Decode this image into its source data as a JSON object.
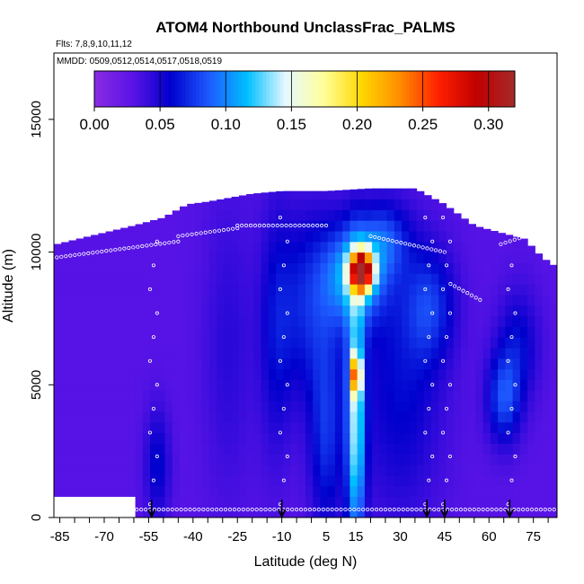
{
  "chart_data": {
    "type": "heatmap",
    "title": "ATOM4 Northbound UnclassFrac_PALMS",
    "flights_note": "Flts: 7,8,9,10,11,12",
    "dates_note": "MMDD: 0509,0512,0514,0517,0518,0519",
    "xlabel": "Latitude (deg N)",
    "ylabel": "Altitude (m)",
    "xlim": [
      -87,
      83
    ],
    "ylim": [
      0,
      17500
    ],
    "x_ticks": [
      -85,
      -70,
      -55,
      -40,
      -25,
      -10,
      5,
      15,
      30,
      45,
      60,
      75
    ],
    "x_tick_labels": [
      "-85",
      "-70",
      "-55",
      "-40",
      "-25",
      "-10",
      "5",
      "15",
      "30",
      "45",
      "60",
      "75"
    ],
    "y_ticks": [
      0,
      5000,
      10000,
      15000
    ],
    "y_tick_labels": [
      "0",
      "5000",
      "10000",
      "15000"
    ],
    "colorbar": {
      "min": 0,
      "max": 0.32,
      "ticks": [
        0.0,
        0.05,
        0.1,
        0.15,
        0.2,
        0.25,
        0.3
      ],
      "tick_labels": [
        "0.00",
        "0.05",
        "0.10",
        "0.15",
        "0.20",
        "0.25",
        "0.30"
      ],
      "colors": [
        "#8a2be2",
        "#5a14e6",
        "#0000cd",
        "#1e5aff",
        "#00bfff",
        "#e6f8ff",
        "#ffff99",
        "#ffd700",
        "#ff8c00",
        "#ff2000",
        "#c00000",
        "#a52a2a"
      ]
    },
    "background_fraction": 0.03,
    "envelope": [
      {
        "lat": -86,
        "top": 10300
      },
      {
        "lat": -75,
        "top": 10600
      },
      {
        "lat": -60,
        "top": 11000
      },
      {
        "lat": -50,
        "top": 11300
      },
      {
        "lat": -42,
        "top": 11800
      },
      {
        "lat": -35,
        "top": 11900
      },
      {
        "lat": -20,
        "top": 12200
      },
      {
        "lat": -10,
        "top": 12300
      },
      {
        "lat": 5,
        "top": 12300
      },
      {
        "lat": 20,
        "top": 12400
      },
      {
        "lat": 35,
        "top": 12400
      },
      {
        "lat": 45,
        "top": 11800
      },
      {
        "lat": 55,
        "top": 11000
      },
      {
        "lat": 65,
        "top": 10700
      },
      {
        "lat": 72,
        "top": 10500
      },
      {
        "lat": 78,
        "top": 9800
      },
      {
        "lat": 82,
        "top": 9500
      }
    ],
    "bottom_gap": {
      "from_lat": -86,
      "to_lat": -60,
      "bottom": 1000
    },
    "features": [
      {
        "lat": -28,
        "alt": 6500,
        "lat_sigma": 6,
        "alt_sigma": 4000,
        "value": 0.045
      },
      {
        "lat": -12,
        "alt": 7000,
        "lat_sigma": 4,
        "alt_sigma": 3500,
        "value": 0.055
      },
      {
        "lat": -52,
        "alt": 2000,
        "lat_sigma": 3,
        "alt_sigma": 1500,
        "value": 0.06
      },
      {
        "lat": 0,
        "alt": 8000,
        "lat_sigma": 8,
        "alt_sigma": 2500,
        "value": 0.07
      },
      {
        "lat": 5,
        "alt": 3000,
        "lat_sigma": 4,
        "alt_sigma": 2500,
        "value": 0.07
      },
      {
        "lat": 15,
        "alt": 3500,
        "lat_sigma": 2.2,
        "alt_sigma": 3500,
        "value": 0.13
      },
      {
        "lat": 15,
        "alt": 9200,
        "lat_sigma": 7,
        "alt_sigma": 1300,
        "value": 0.11
      },
      {
        "lat": 17,
        "alt": 9300,
        "lat_sigma": 2.5,
        "alt_sigma": 500,
        "value": 0.29
      },
      {
        "lat": 15,
        "alt": 5400,
        "lat_sigma": 1.2,
        "alt_sigma": 500,
        "value": 0.17
      },
      {
        "lat": 30,
        "alt": 5000,
        "lat_sigma": 10,
        "alt_sigma": 3500,
        "value": 0.06
      },
      {
        "lat": 40,
        "alt": 8000,
        "lat_sigma": 6,
        "alt_sigma": 1500,
        "value": 0.07
      },
      {
        "lat": 65,
        "alt": 4500,
        "lat_sigma": 4,
        "alt_sigma": 1200,
        "value": 0.08
      },
      {
        "lat": 70,
        "alt": 6500,
        "lat_sigma": 5,
        "alt_sigma": 1500,
        "value": 0.06
      },
      {
        "lat": 25,
        "alt": 10500,
        "lat_sigma": 6,
        "alt_sigma": 1000,
        "value": 0.07
      }
    ],
    "arrows_lat": [
      -54,
      -10,
      39,
      45,
      67
    ],
    "sample_tracks": [
      {
        "lat": [
          -86,
          82
        ],
        "alt": [
          300,
          300
        ]
      },
      {
        "lat": [
          -86,
          -45
        ],
        "alt": [
          9800,
          10400
        ]
      },
      {
        "lat": [
          -45,
          -25
        ],
        "alt": [
          10600,
          10900
        ]
      },
      {
        "lat": [
          -25,
          5
        ],
        "alt": [
          11000,
          11000
        ]
      },
      {
        "lat": [
          20,
          45
        ],
        "alt": [
          10600,
          10000
        ]
      },
      {
        "lat": [
          47,
          57
        ],
        "alt": [
          8800,
          8200
        ]
      },
      {
        "lat": [
          64,
          78
        ],
        "alt": [
          10300,
          10800
        ]
      }
    ]
  }
}
